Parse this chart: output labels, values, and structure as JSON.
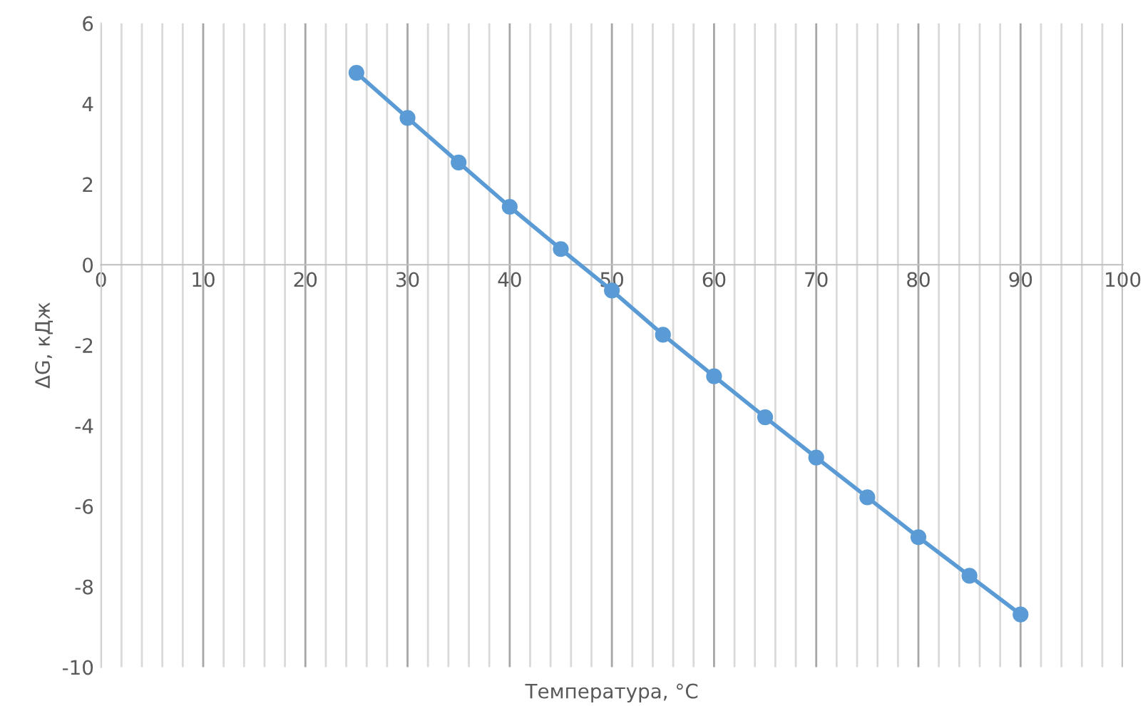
{
  "chart_data": {
    "type": "line",
    "xlabel": "Температура, °C",
    "ylabel": "ΔG, кДж",
    "x": [
      25,
      30,
      35,
      40,
      45,
      50,
      55,
      60,
      65,
      70,
      75,
      80,
      85,
      90
    ],
    "series": [
      {
        "color": "#5b9bd5",
        "values": [
          4.77,
          3.65,
          2.54,
          1.44,
          0.39,
          -0.64,
          -1.74,
          -2.77,
          -3.79,
          -4.79,
          -5.78,
          -6.77,
          -7.73,
          -8.69
        ]
      }
    ],
    "xlim": [
      0,
      100
    ],
    "ylim": [
      -10,
      6
    ],
    "xticks": [
      0,
      10,
      20,
      30,
      40,
      50,
      60,
      70,
      80,
      90,
      100
    ],
    "yticks": [
      -10,
      -8,
      -6,
      -4,
      -2,
      0,
      2,
      4,
      6
    ],
    "grid": "x",
    "marker": "circle",
    "line_style": "solid",
    "legend": false
  }
}
